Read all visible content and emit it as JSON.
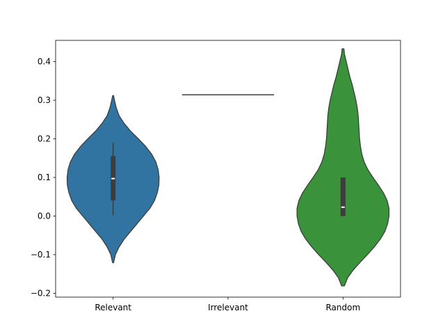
{
  "chart_data": {
    "type": "violin",
    "title": "",
    "xlabel": "",
    "ylabel": "",
    "categories": [
      "Relevant",
      "Irrelevant",
      "Random"
    ],
    "ylim": [
      -0.21,
      0.455
    ],
    "yticks": [
      -0.2,
      -0.1,
      0.0,
      0.1,
      0.2,
      0.3,
      0.4
    ],
    "ytick_labels": [
      "−0.2",
      "−0.1",
      "0.0",
      "0.1",
      "0.2",
      "0.3",
      "0.4"
    ],
    "grid": false,
    "legend": "none",
    "series": [
      {
        "category": "Relevant",
        "color": "#3274a1",
        "min": -0.121,
        "max": 0.312,
        "q1": 0.04,
        "median": 0.097,
        "q3": 0.155,
        "whisker_low": 0.002,
        "whisker_high": 0.19,
        "density": [
          [
            -0.121,
            0.01
          ],
          [
            -0.1,
            0.05
          ],
          [
            -0.08,
            0.13
          ],
          [
            -0.06,
            0.24
          ],
          [
            -0.04,
            0.38
          ],
          [
            -0.02,
            0.52
          ],
          [
            0.0,
            0.66
          ],
          [
            0.02,
            0.8
          ],
          [
            0.04,
            0.9
          ],
          [
            0.06,
            0.96
          ],
          [
            0.08,
            0.995
          ],
          [
            0.1,
            1.0
          ],
          [
            0.12,
            0.98
          ],
          [
            0.14,
            0.93
          ],
          [
            0.16,
            0.84
          ],
          [
            0.18,
            0.71
          ],
          [
            0.2,
            0.55
          ],
          [
            0.22,
            0.38
          ],
          [
            0.24,
            0.24
          ],
          [
            0.26,
            0.13
          ],
          [
            0.28,
            0.07
          ],
          [
            0.3,
            0.03
          ],
          [
            0.312,
            0.01
          ]
        ]
      },
      {
        "category": "Irrelevant",
        "color": "#e1812c",
        "single_value": 0.314
      },
      {
        "category": "Random",
        "color": "#3a923a",
        "min": -0.181,
        "max": 0.433,
        "q1": 0.0,
        "median": 0.023,
        "q3": 0.1,
        "whisker_low": 0.0,
        "whisker_high": 0.1,
        "density": [
          [
            -0.181,
            0.03
          ],
          [
            -0.16,
            0.1
          ],
          [
            -0.14,
            0.22
          ],
          [
            -0.12,
            0.37
          ],
          [
            -0.1,
            0.53
          ],
          [
            -0.08,
            0.68
          ],
          [
            -0.06,
            0.81
          ],
          [
            -0.04,
            0.91
          ],
          [
            -0.02,
            0.97
          ],
          [
            0.0,
            1.0
          ],
          [
            0.02,
            1.0
          ],
          [
            0.04,
            0.96
          ],
          [
            0.06,
            0.88
          ],
          [
            0.08,
            0.77
          ],
          [
            0.1,
            0.65
          ],
          [
            0.12,
            0.54
          ],
          [
            0.14,
            0.46
          ],
          [
            0.16,
            0.41
          ],
          [
            0.18,
            0.38
          ],
          [
            0.2,
            0.36
          ],
          [
            0.22,
            0.35
          ],
          [
            0.24,
            0.34
          ],
          [
            0.26,
            0.33
          ],
          [
            0.28,
            0.31
          ],
          [
            0.3,
            0.28
          ],
          [
            0.32,
            0.24
          ],
          [
            0.34,
            0.2
          ],
          [
            0.36,
            0.15
          ],
          [
            0.38,
            0.11
          ],
          [
            0.4,
            0.07
          ],
          [
            0.42,
            0.03
          ],
          [
            0.433,
            0.02
          ]
        ]
      }
    ]
  }
}
